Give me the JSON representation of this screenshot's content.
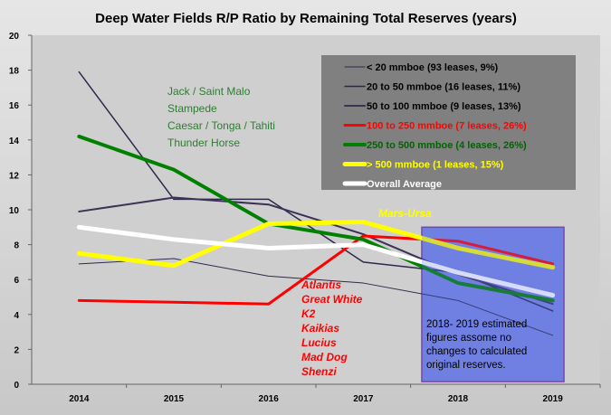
{
  "chart_data": {
    "type": "line",
    "title": "Deep Water Fields R/P Ratio by Remaining Total Reserves (years)",
    "x": [
      "2014",
      "2015",
      "2016",
      "2017",
      "2018",
      "2019"
    ],
    "ylim": [
      0,
      20
    ],
    "yticks": [
      "0",
      "2",
      "4",
      "6",
      "8",
      "10",
      "12",
      "14",
      "16",
      "18",
      "20"
    ],
    "grid": "none",
    "legend_position": "top-right",
    "series": [
      {
        "name": "< 20 mmboe (93  leases,  9%)",
        "color": "#2b2a4c",
        "width": 1,
        "values": [
          6.9,
          7.2,
          6.2,
          5.8,
          4.8,
          2.8
        ]
      },
      {
        "name": "20 to 50 mmboe (16  leases,  11%)",
        "color": "#2b2a4c",
        "width": 1.5,
        "values": [
          17.9,
          10.6,
          10.6,
          7.0,
          6.4,
          4.2
        ]
      },
      {
        "name": "50 to 100 mmboe (9  leases,  13%)",
        "color": "#3d3157",
        "width": 2,
        "values": [
          9.9,
          10.7,
          10.3,
          8.6,
          6.3,
          4.6
        ]
      },
      {
        "name": "100 to 250 mmboe (7  leases,  26%)",
        "color": "#ff0000",
        "width": 3,
        "values": [
          4.8,
          4.7,
          4.6,
          8.5,
          8.2,
          6.9
        ]
      },
      {
        "name": "250 to 500 mmboe (4  leases,  26%)",
        "color": "#008000",
        "width": 4,
        "values": [
          14.2,
          12.3,
          9.2,
          8.3,
          5.8,
          4.8
        ]
      },
      {
        "name": "> 500 mmboe (1  leases,  15%)",
        "color": "#ffff00",
        "width": 5,
        "values": [
          7.5,
          6.8,
          9.2,
          9.3,
          7.8,
          6.7
        ]
      },
      {
        "name": "Overall Average",
        "color": "#ffffff",
        "width": 5,
        "values": [
          9.0,
          8.3,
          7.8,
          8.0,
          6.4,
          5.1
        ]
      }
    ],
    "annotations": {
      "green_fields": [
        "Jack / Saint Malo",
        "Stampede",
        "Caesar / Tonga / Tahiti",
        "Thunder Horse"
      ],
      "red_fields": [
        "Atlantis",
        "Great White",
        "K2",
        "Kaikias",
        "Lucius",
        "Mad Dog",
        "Shenzi"
      ],
      "mars_ursa": "Mars-Ursa",
      "estimate_note": [
        "2018- 2019 estimated",
        "figures assome no",
        "changes to calculated",
        "original reserves."
      ]
    },
    "colors": {
      "plot_background": "#cfcfcf",
      "legend_background": "#808080",
      "estimate_box": "#5a6ee6",
      "estimate_box_border": "#7a3fa0",
      "green_text": "#2e7d32",
      "red_text": "#ff0000",
      "yellow_text": "#ffff00"
    }
  }
}
